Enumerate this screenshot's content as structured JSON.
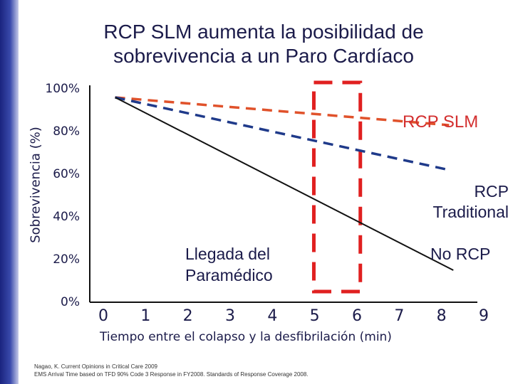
{
  "title_line1": "RCP SLM aumenta la posibilidad de",
  "title_line2": "sobrevivencia a un Paro Cardíaco",
  "colors": {
    "slm": "#e0522b",
    "traditional": "#1f3a8a",
    "no_rcp": "#111111",
    "window": "#e02020",
    "text": "#1b1b4a"
  },
  "chart_data": {
    "type": "line",
    "xlabel": "Tiempo entre el colapso y la desfibrilación (min)",
    "ylabel": "Sobrevivencia (%)",
    "xlim": [
      0,
      9
    ],
    "ylim": [
      0,
      100
    ],
    "x_ticks": [
      "0",
      "1",
      "2",
      "3",
      "4",
      "5",
      "6",
      "7",
      "8",
      "9"
    ],
    "y_ticks": [
      "0%",
      "20%",
      "40%",
      "60%",
      "80%",
      "100%"
    ],
    "series": [
      {
        "name": "RCP SLM",
        "x": [
          0.6,
          8.5
        ],
        "y": [
          96,
          83
        ],
        "style": "dashed",
        "color": "#e0522b"
      },
      {
        "name": "RCP Traditional",
        "x": [
          0.6,
          8.5
        ],
        "y": [
          96,
          62
        ],
        "style": "dashed",
        "color": "#1f3a8a"
      },
      {
        "name": "No RCP",
        "x": [
          0.6,
          8.6
        ],
        "y": [
          96,
          15
        ],
        "style": "solid",
        "color": "#111111"
      }
    ],
    "highlight_region": {
      "x_range": [
        5.3,
        6.4
      ],
      "y_range": [
        5,
        103
      ]
    },
    "annotations": {
      "slm": "RCP SLM",
      "traditional_1": "RCP",
      "traditional_2": "Traditional",
      "no_rcp": "No RCP",
      "paramedic_1": "Llegada del",
      "paramedic_2": "Paramédico"
    }
  },
  "footnote_1": "Nagao, K. Current  Opinions in Critical Care 2009",
  "footnote_2": "EMS Arrival Time based on TFD 90% Code 3 Response in FY2008.  Standards of Response Coverage 2008."
}
